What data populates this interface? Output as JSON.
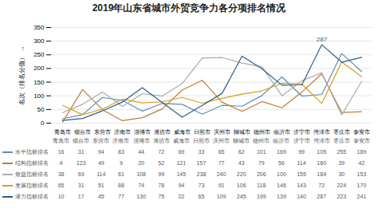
{
  "chart_data": {
    "type": "line",
    "title": "2019年山东省城市外贸竞争力各分项排名情况",
    "categories": [
      "青岛市",
      "烟台市",
      "东营市",
      "济南市",
      "淄博市",
      "潍坊市",
      "威海市",
      "日照市",
      "滨州市",
      "聊城市",
      "德州市",
      "临沂市",
      "济宁市",
      "菏泽市",
      "枣庄市",
      "泰安市"
    ],
    "series": [
      {
        "name": "水平指标排名",
        "color": "#5B8DB8",
        "values": [
          16,
          31,
          94,
          83,
          44,
          72,
          69,
          33,
          65,
          62,
          101,
          169,
          99,
          105,
          255,
          189
        ]
      },
      {
        "name": "结构指标排名",
        "color": "#C07B3A",
        "values": [
          4,
          123,
          49,
          9,
          20,
          52,
          121,
          157,
          77,
          43,
          79,
          56,
          114,
          180,
          39,
          42
        ]
      },
      {
        "name": "效益指标排名",
        "color": "#ABABAB",
        "values": [
          38,
          69,
          114,
          61,
          108,
          99,
          145,
          238,
          240,
          220,
          206,
          100,
          155,
          184,
          30,
          153
        ]
      },
      {
        "name": "发展指标排名",
        "color": "#D4A017",
        "values": [
          65,
          31,
          51,
          88,
          74,
          78,
          94,
          73,
          91,
          106,
          118,
          146,
          143,
          72,
          224,
          170
        ]
      },
      {
        "name": "潜力指标排名",
        "color": "#2E5F8A",
        "values": [
          10,
          17,
          45,
          77,
          130,
          75,
          22,
          65,
          109,
          245,
          199,
          139,
          140,
          287,
          223,
          241
        ]
      }
    ],
    "ylabel": "名次（排名分值）",
    "ylim": [
      0,
      350
    ],
    "yticks": [
      0,
      50,
      100,
      150,
      200,
      250,
      300,
      350
    ],
    "grid": true,
    "legend": "bottom",
    "data_labels": true,
    "annotations": [
      {
        "text": "287",
        "x": "菏泽市",
        "y": 287,
        "color": "#2E5F8A"
      }
    ]
  }
}
